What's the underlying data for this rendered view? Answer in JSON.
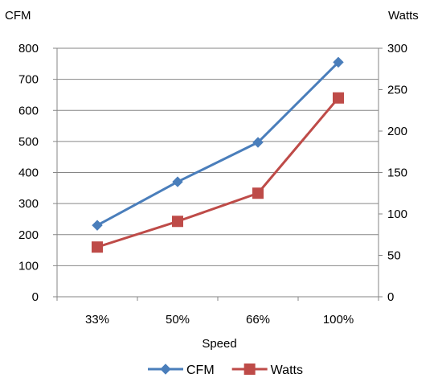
{
  "chart_data": {
    "type": "line",
    "categories": [
      "33%",
      "50%",
      "66%",
      "100%"
    ],
    "xlabel": "Speed",
    "left_axis": {
      "label": "CFM",
      "ylim": [
        0,
        800
      ],
      "ticks": [
        0,
        100,
        200,
        300,
        400,
        500,
        600,
        700,
        800
      ]
    },
    "right_axis": {
      "label": "Watts",
      "ylim": [
        0,
        300
      ],
      "ticks": [
        0,
        50,
        100,
        150,
        200,
        250,
        300
      ]
    },
    "grid": true,
    "legend_position": "bottom",
    "series": [
      {
        "name": "CFM",
        "axis": "left",
        "marker": "diamond",
        "color": "#4A7EBB",
        "values": [
          230,
          370,
          497,
          755
        ]
      },
      {
        "name": "Watts",
        "axis": "right",
        "marker": "square",
        "color": "#BE4B48",
        "values": [
          60,
          91,
          125,
          240
        ]
      }
    ]
  }
}
